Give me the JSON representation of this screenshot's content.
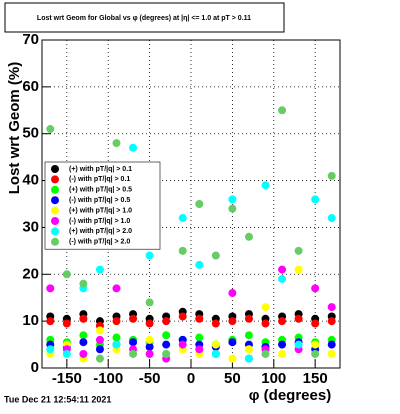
{
  "chart_data": {
    "type": "scatter",
    "title": "Lost wrt Geom for Global vs φ (degrees) at |η| <= 1.0 at pT > 0.11",
    "x_label": "φ (degrees)",
    "y_label": "Lost wrt Geom (%)",
    "footer": "Tue Dec 21 12:54:11 2021",
    "xlim": [
      -180,
      180
    ],
    "ylim": [
      0,
      70
    ],
    "xticks": [
      -150,
      -100,
      -50,
      0,
      50,
      100,
      150
    ],
    "yticks": [
      0,
      10,
      20,
      30,
      40,
      50,
      60,
      70
    ],
    "grid": true,
    "legend": "left",
    "x": [
      -170,
      -150,
      -130,
      -110,
      -90,
      -70,
      -50,
      -30,
      -10,
      10,
      30,
      50,
      70,
      90,
      110,
      130,
      150,
      170
    ],
    "series": [
      {
        "name": "(+) with pT/|q| > 0.1",
        "color": "#000000",
        "values": [
          11,
          10.5,
          11.5,
          10,
          11,
          11.5,
          10.5,
          11,
          12,
          11.5,
          10.5,
          11,
          11.5,
          10.5,
          11,
          11.5,
          10.5,
          11
        ]
      },
      {
        "name": "(-) with pT/|q| > 0.1",
        "color": "#ff0000",
        "values": [
          10,
          9.5,
          10.5,
          9,
          10,
          10.5,
          9.5,
          10,
          11,
          10.5,
          9.5,
          10,
          10.5,
          9.5,
          10,
          10.5,
          9.5,
          10
        ]
      },
      {
        "name": "(+) with pT/|q| > 0.5",
        "color": "#00ff00",
        "values": [
          6,
          5.5,
          7,
          5,
          6.5,
          6,
          5.5,
          7,
          6,
          6.5,
          5,
          6,
          7,
          5.5,
          6,
          6.5,
          5.5,
          6
        ]
      },
      {
        "name": "(-) with pT/|q| > 0.5",
        "color": "#0000ff",
        "values": [
          5,
          4.5,
          5.5,
          4,
          5,
          5.5,
          4.5,
          5,
          6,
          5,
          4.5,
          5.5,
          5,
          4.5,
          5,
          5.5,
          4,
          5
        ]
      },
      {
        "name": "(+) with pT/|q| > 1.0",
        "color": "#ffff00",
        "values": [
          3,
          5,
          2,
          8,
          4,
          3,
          6,
          2,
          4,
          3,
          5,
          2,
          4,
          13,
          3,
          21,
          5,
          3
        ]
      },
      {
        "name": "(-) with pT/|q| > 1.0",
        "color": "#ff00ff",
        "values": [
          17,
          4,
          3,
          6,
          17,
          4,
          3,
          2,
          5,
          4,
          3,
          16,
          2,
          4,
          21,
          4,
          17,
          13
        ]
      },
      {
        "name": "(+) with pT/|q| > 2.0",
        "color": "#00ffff",
        "values": [
          4,
          3,
          17,
          21,
          5,
          47,
          24,
          3,
          32,
          22,
          3,
          36,
          2,
          39,
          19,
          5,
          36,
          32
        ]
      },
      {
        "name": "(-) with pT/|q| > 2.0",
        "color": "#66cc66",
        "values": [
          51,
          20,
          18,
          2,
          48,
          3,
          14,
          3,
          25,
          35,
          24,
          34,
          28,
          3,
          55,
          25,
          3,
          41
        ]
      }
    ]
  }
}
